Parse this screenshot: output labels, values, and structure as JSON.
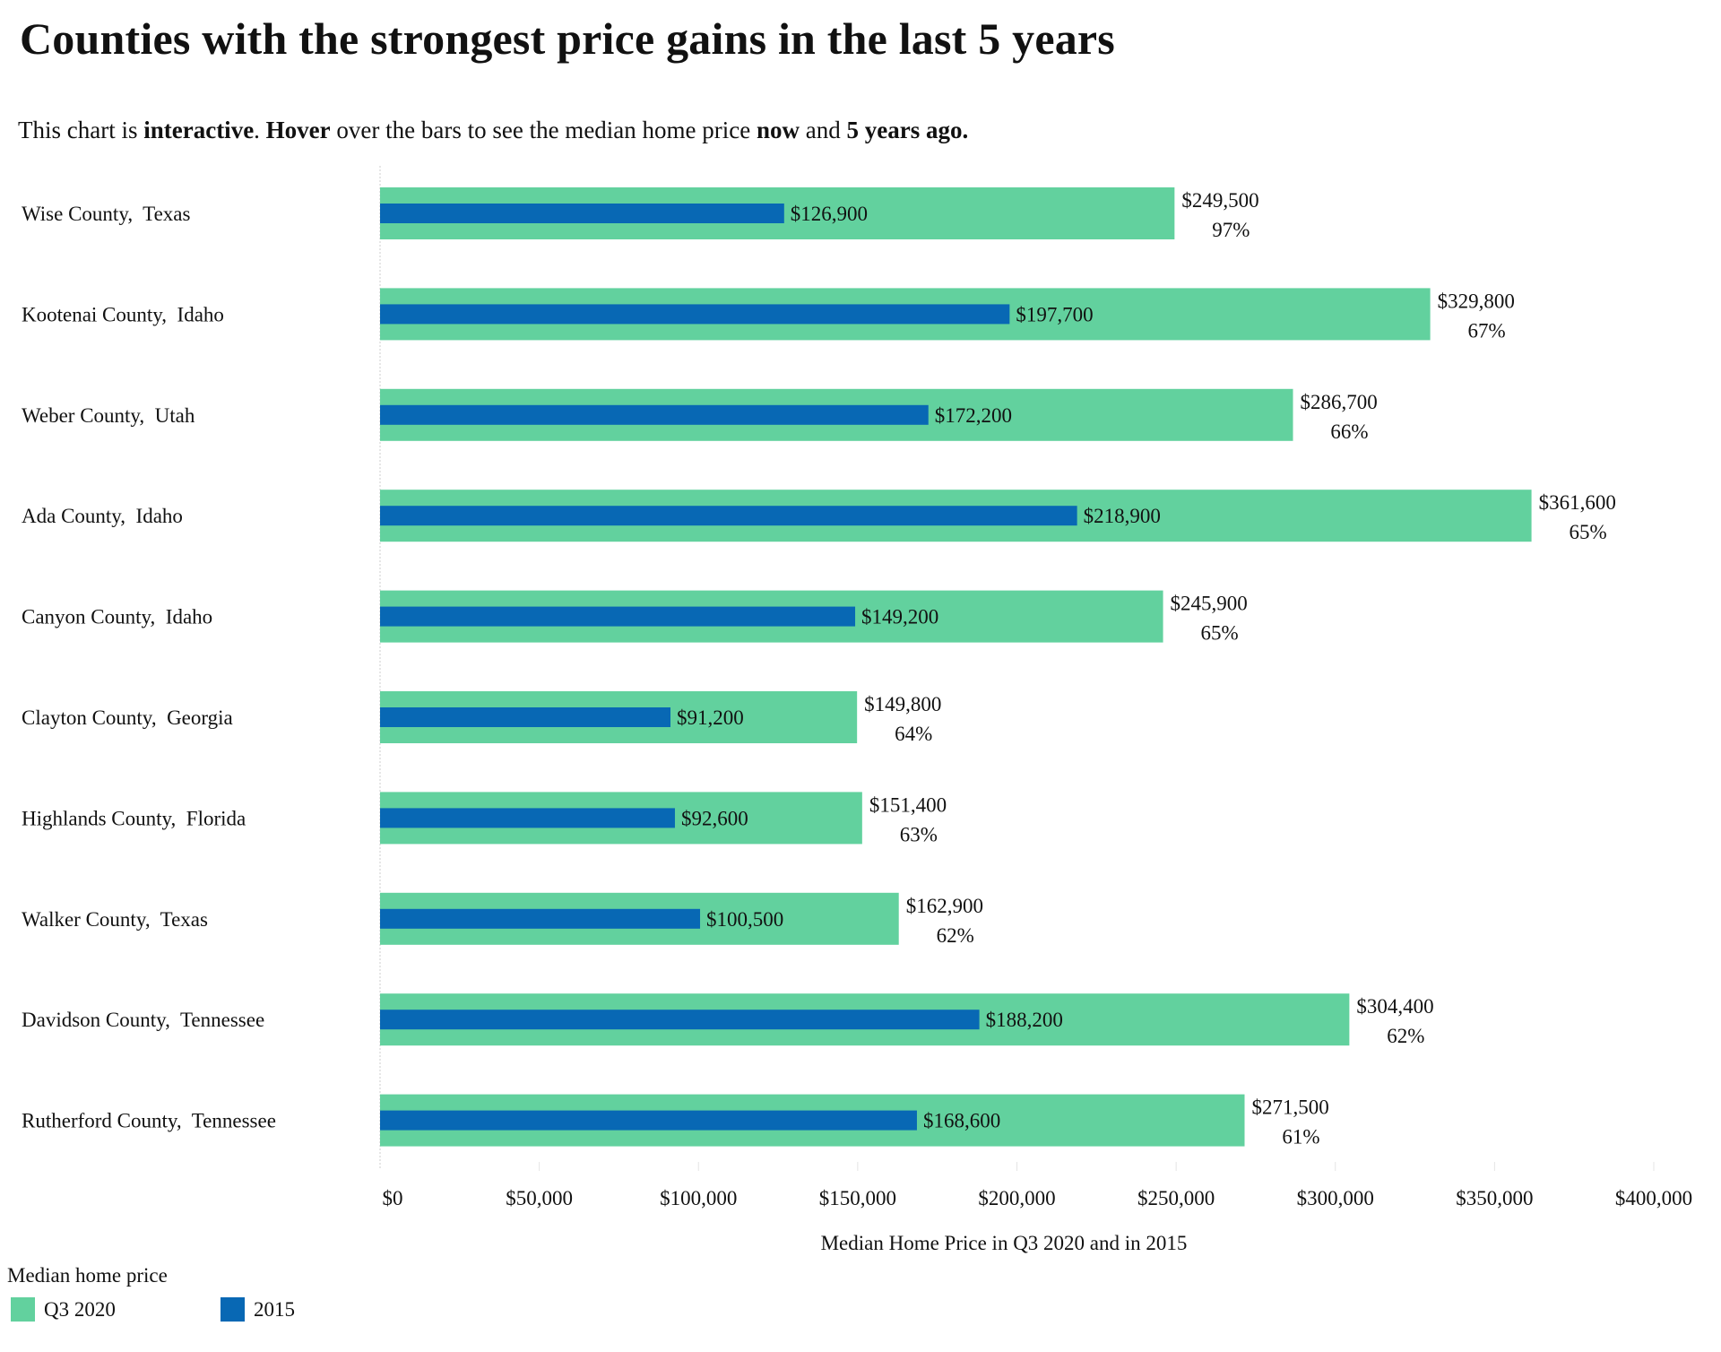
{
  "header": {
    "title": "Counties with the strongest price gains in the last 5 years",
    "subtitle_parts": [
      {
        "text": "This chart is ",
        "bold": false
      },
      {
        "text": "interactive",
        "bold": true
      },
      {
        "text": ". ",
        "bold": false
      },
      {
        "text": "Hover",
        "bold": true
      },
      {
        "text": " over the bars to see the median home price ",
        "bold": false
      },
      {
        "text": "now",
        "bold": true
      },
      {
        "text": " and ",
        "bold": false
      },
      {
        "text": "5 years ago.",
        "bold": true
      }
    ]
  },
  "colors": {
    "q3_2020": "#62D19E",
    "y2015": "#0868B4",
    "text": "#111111",
    "grid": "#dddddd"
  },
  "legend": {
    "title": "Median home price",
    "items": [
      {
        "label": "Q3 2020",
        "color_key": "q3_2020"
      },
      {
        "label": "2015",
        "color_key": "y2015"
      }
    ]
  },
  "chart_data": {
    "type": "bar",
    "orientation": "horizontal",
    "title": "Counties with the strongest price gains in the last 5 years",
    "xlabel": "Median Home Price in Q3 2020 and in 2015",
    "ylabel": "",
    "xlim": [
      0,
      400000
    ],
    "x_ticks": [
      0,
      50000,
      100000,
      150000,
      200000,
      250000,
      300000,
      350000,
      400000
    ],
    "x_tick_labels": [
      "$0",
      "$50,000",
      "$100,000",
      "$150,000",
      "$200,000",
      "$250,000",
      "$300,000",
      "$350,000",
      "$400,000"
    ],
    "grid": true,
    "legend_position": "bottom-left",
    "categories": [
      "Wise County,  Texas",
      "Kootenai County,  Idaho",
      "Weber County,  Utah",
      "Ada County,  Idaho",
      "Canyon County,  Idaho",
      "Clayton County,  Georgia",
      "Highlands County,  Florida",
      "Walker County,  Texas",
      "Davidson County,  Tennessee",
      "Rutherford County,  Tennessee"
    ],
    "series": [
      {
        "name": "Q3 2020",
        "values": [
          249500,
          329800,
          286700,
          361600,
          245900,
          149800,
          151400,
          162900,
          304400,
          271500
        ],
        "labels": [
          "$249,500",
          "$329,800",
          "$286,700",
          "$361,600",
          "$245,900",
          "$149,800",
          "$151,400",
          "$162,900",
          "$304,400",
          "$271,500"
        ]
      },
      {
        "name": "2015",
        "values": [
          126900,
          197700,
          172200,
          218900,
          149200,
          91200,
          92600,
          100500,
          188200,
          168600
        ],
        "labels": [
          "$126,900",
          "$197,700",
          "$172,200",
          "$218,900",
          "$149,200",
          "$91,200",
          "$92,600",
          "$100,500",
          "$188,200",
          "$168,600"
        ]
      }
    ],
    "pct_change": [
      97,
      67,
      66,
      65,
      65,
      64,
      63,
      62,
      62,
      61
    ],
    "pct_change_labels": [
      "97%",
      "67%",
      "66%",
      "65%",
      "65%",
      "64%",
      "63%",
      "62%",
      "62%",
      "61%"
    ]
  }
}
